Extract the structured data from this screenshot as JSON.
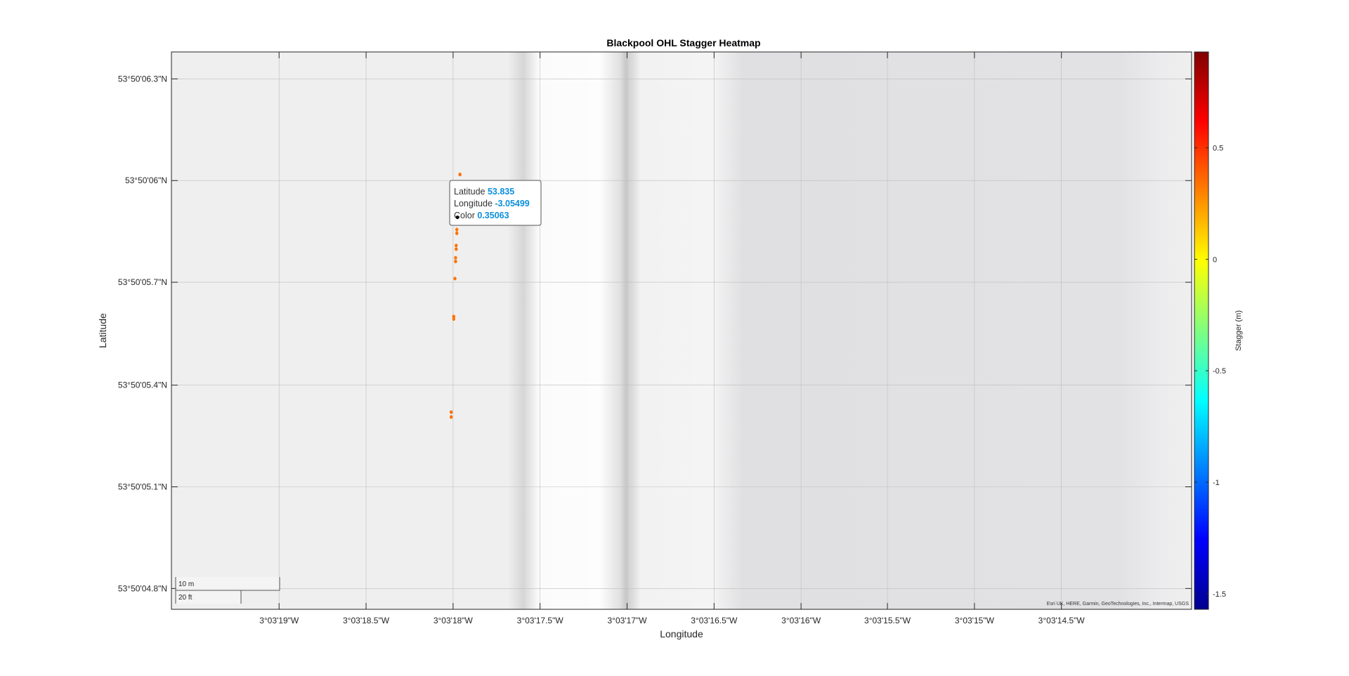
{
  "chart_data": {
    "type": "scatter",
    "title": "Blackpool OHL Stagger Heatmap",
    "xlabel": "Longitude",
    "ylabel": "Latitude",
    "xlim": [
      -3.05545,
      -3.05382
    ],
    "ylim": [
      53.83465,
      53.835105
    ],
    "grid": true,
    "x_ticks": [
      -3.055278,
      -3.055139,
      -3.055,
      -3.054861,
      -3.054722,
      -3.054583,
      -3.054444,
      -3.054306,
      -3.054167,
      -3.054028
    ],
    "x_tick_labels": [
      "3°03'19\"W",
      "3°03'18.5\"W",
      "3°03'18\"W",
      "3°03'17.5\"W",
      "3°03'17\"W",
      "3°03'16.5\"W",
      "3°03'16\"W",
      "3°03'15.5\"W",
      "3°03'15\"W",
      "3°03'14.5\"W"
    ],
    "y_ticks": [
      53.835083,
      53.835,
      53.834917,
      53.834833,
      53.83475,
      53.834667
    ],
    "y_tick_labels": [
      "53°50'06.3\"N",
      "53°50'06\"N",
      "53°50'05.7\"N",
      "53°50'05.4\"N",
      "53°50'05.1\"N",
      "53°50'04.8\"N"
    ],
    "colorbar": {
      "label": "Stagger (m)",
      "clim": [
        -1.57,
        0.93
      ],
      "ticks": [
        0.5,
        0,
        -0.5,
        -1,
        -1.5
      ],
      "tick_labels": [
        "0.5",
        "0",
        "-0.5",
        "-1",
        "-1.5"
      ],
      "colormap": "jet"
    },
    "series": [
      {
        "points": [
          {
            "lon": -3.054989,
            "lat": 53.835005,
            "c": 0.35
          },
          {
            "lon": -3.054991,
            "lat": 53.834986,
            "c": 0.33
          },
          {
            "lon": -3.054992,
            "lat": 53.834976,
            "c": 0.34
          },
          {
            "lon": -3.054993,
            "lat": 53.83497,
            "c": 0.35063
          },
          {
            "lon": -3.054994,
            "lat": 53.834965,
            "c": 0.34
          },
          {
            "lon": -3.054994,
            "lat": 53.83496,
            "c": 0.33
          },
          {
            "lon": -3.054994,
            "lat": 53.834957,
            "c": 0.34
          },
          {
            "lon": -3.054995,
            "lat": 53.834947,
            "c": 0.33
          },
          {
            "lon": -3.054995,
            "lat": 53.834944,
            "c": 0.34
          },
          {
            "lon": -3.054996,
            "lat": 53.834937,
            "c": 0.33
          },
          {
            "lon": -3.054996,
            "lat": 53.834934,
            "c": 0.34
          },
          {
            "lon": -3.054997,
            "lat": 53.83492,
            "c": 0.34
          },
          {
            "lon": -3.054999,
            "lat": 53.834889,
            "c": 0.35
          },
          {
            "lon": -3.054999,
            "lat": 53.834887,
            "c": 0.33
          },
          {
            "lon": -3.055003,
            "lat": 53.834811,
            "c": 0.35
          },
          {
            "lon": -3.055003,
            "lat": 53.834807,
            "c": 0.34
          }
        ]
      }
    ],
    "datatip": {
      "lat_label": "Latitude",
      "lat_value": "53.835",
      "lon_label": "Longitude",
      "lon_value": "-3.05499",
      "color_label": "Color",
      "color_value": "0.35063",
      "anchor_lon": -3.054993,
      "anchor_lat": 53.83497
    },
    "scalebar": {
      "metric": "10 m",
      "imperial": "20 ft"
    },
    "attribution": "Esri UK, HERE, Garmin, GeoTechnologies, Inc., Intermap, USGS"
  }
}
